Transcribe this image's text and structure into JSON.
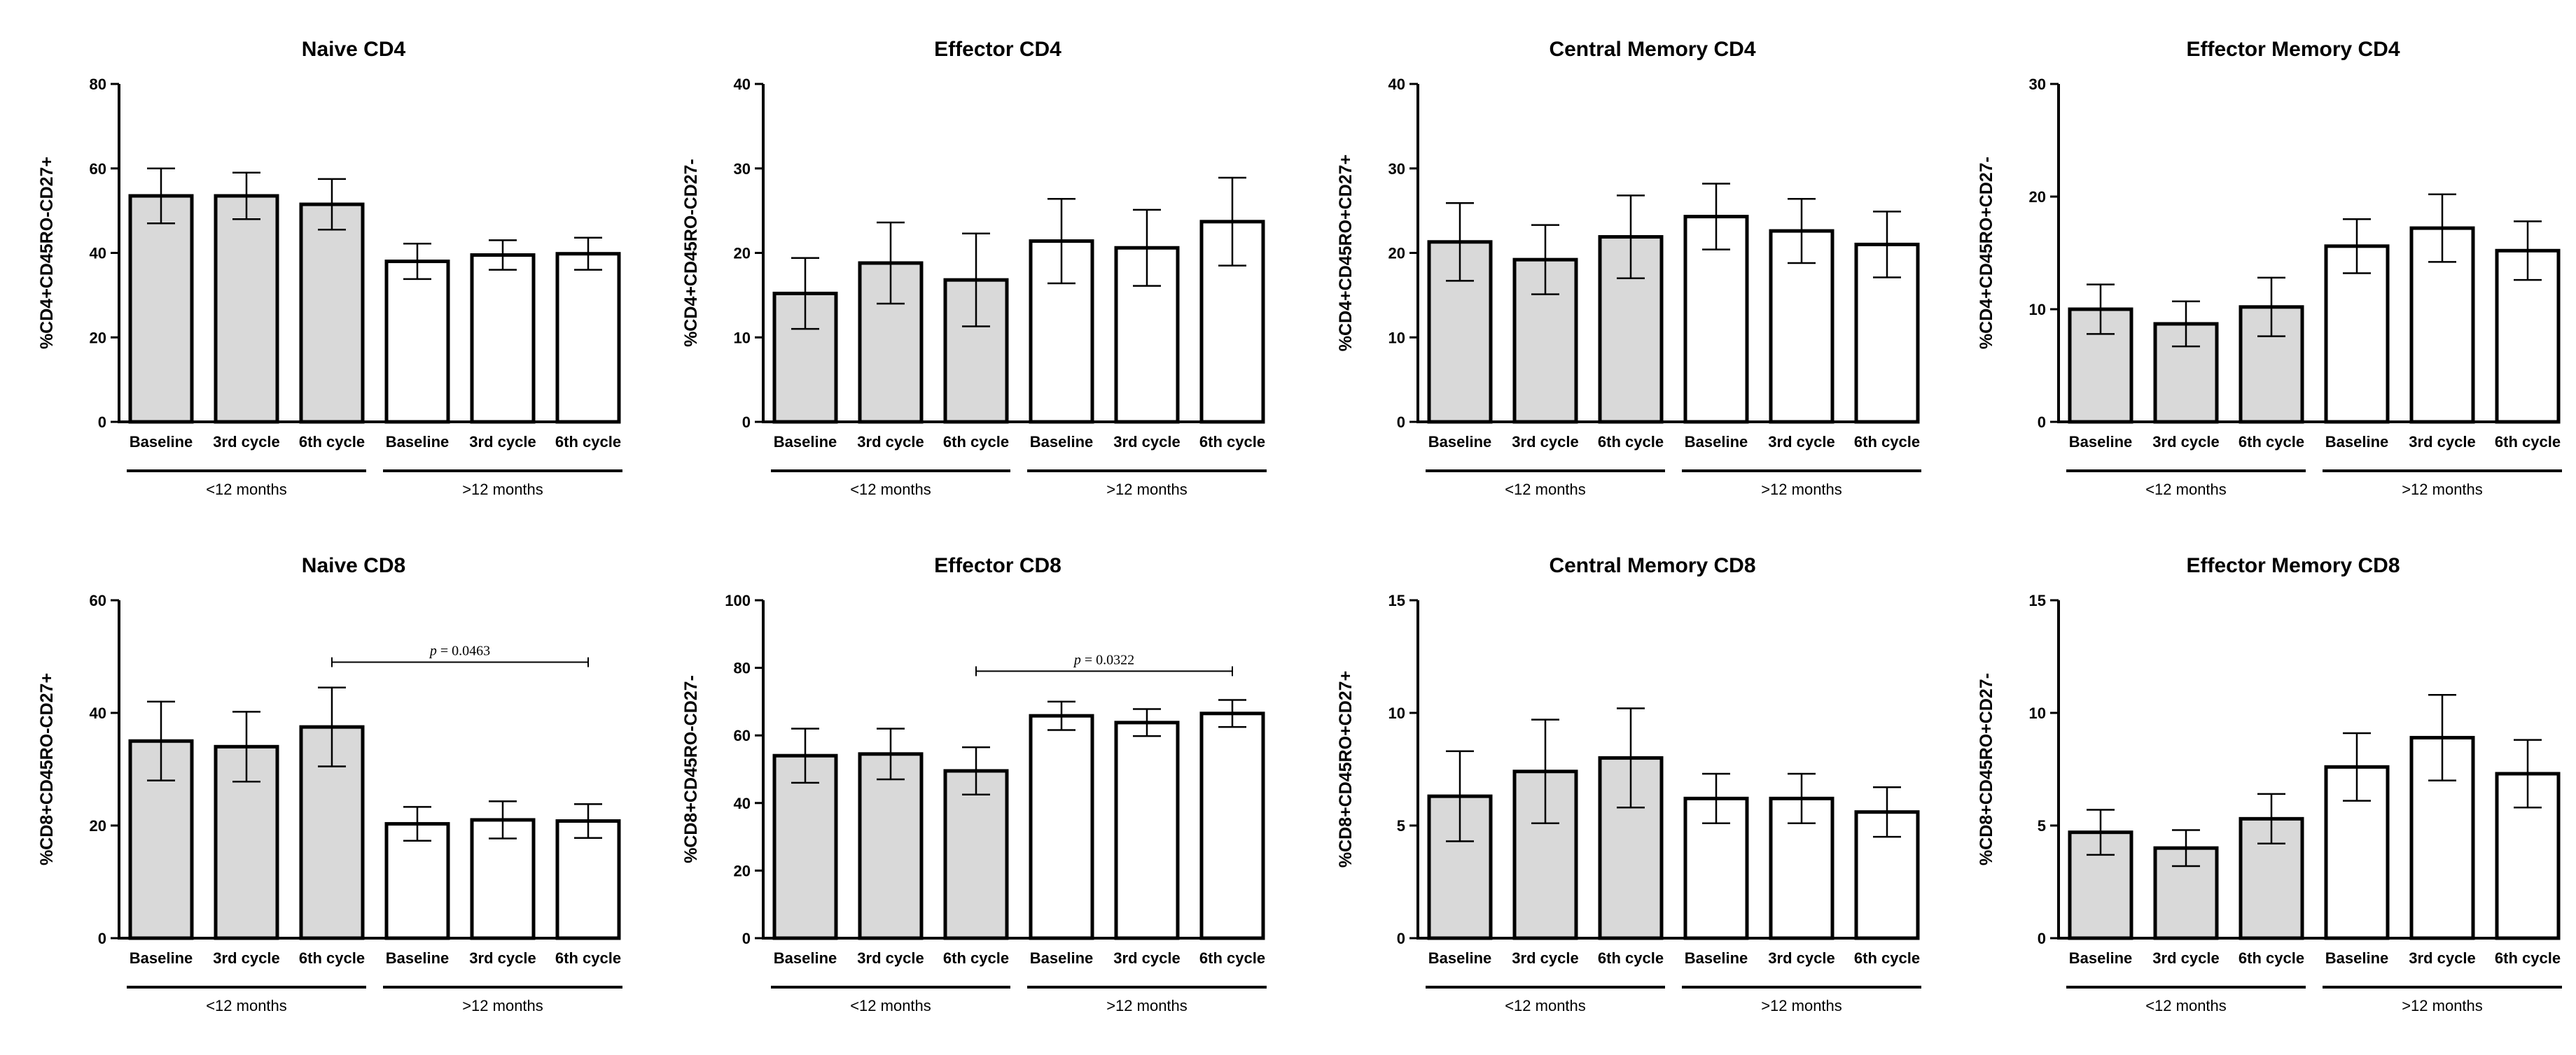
{
  "colors": {
    "shortFill": "#d9d9d9",
    "longFill": "#ffffff",
    "stroke": "#000000"
  },
  "chart_data": [
    {
      "type": "bar",
      "title": "Naive CD4",
      "ylabel": "%CD4+CD45RO-CD27+",
      "ylim": [
        0,
        80
      ],
      "yticks": [
        0,
        20,
        40,
        60,
        80
      ],
      "categories": [
        "Baseline",
        "3rd cycle",
        "6th cycle",
        "Baseline",
        "3rd cycle",
        "6th cycle"
      ],
      "groups": [
        "<12 months",
        ">12 months"
      ],
      "values": [
        53.5,
        53.5,
        51.5,
        38.0,
        39.5,
        39.8
      ],
      "errors": [
        6.5,
        5.5,
        6.0,
        4.2,
        3.5,
        3.8
      ]
    },
    {
      "type": "bar",
      "title": "Effector CD4",
      "ylabel": "%CD4+CD45RO-CD27-",
      "ylim": [
        0,
        40
      ],
      "yticks": [
        0,
        10,
        20,
        30,
        40
      ],
      "categories": [
        "Baseline",
        "3rd cycle",
        "6th cycle",
        "Baseline",
        "3rd cycle",
        "6th cycle"
      ],
      "groups": [
        "<12 months",
        ">12 months"
      ],
      "values": [
        15.2,
        18.8,
        16.8,
        21.4,
        20.6,
        23.7
      ],
      "errors": [
        4.2,
        4.8,
        5.5,
        5.0,
        4.5,
        5.2
      ]
    },
    {
      "type": "bar",
      "title": "Central Memory CD4",
      "ylabel": "%CD4+CD45RO+CD27+",
      "ylim": [
        0,
        40
      ],
      "yticks": [
        0,
        10,
        20,
        30,
        40
      ],
      "categories": [
        "Baseline",
        "3rd cycle",
        "6th cycle",
        "Baseline",
        "3rd cycle",
        "6th cycle"
      ],
      "groups": [
        "<12 months",
        ">12 months"
      ],
      "values": [
        21.3,
        19.2,
        21.9,
        24.3,
        22.6,
        21.0
      ],
      "errors": [
        4.6,
        4.1,
        4.9,
        3.9,
        3.8,
        3.9
      ]
    },
    {
      "type": "bar",
      "title": "Effector Memory CD4",
      "ylabel": "%CD4+CD45RO+CD27-",
      "ylim": [
        0,
        30
      ],
      "yticks": [
        0,
        10,
        20,
        30
      ],
      "categories": [
        "Baseline",
        "3rd cycle",
        "6th cycle",
        "Baseline",
        "3rd cycle",
        "6th cycle"
      ],
      "groups": [
        "<12 months",
        ">12 months"
      ],
      "values": [
        10.0,
        8.7,
        10.2,
        15.6,
        17.2,
        15.2
      ],
      "errors": [
        2.2,
        2.0,
        2.6,
        2.4,
        3.0,
        2.6
      ]
    },
    {
      "type": "bar",
      "title": "Naive CD8",
      "ylabel": "%CD8+CD45RO-CD27+",
      "ylim": [
        0,
        60
      ],
      "yticks": [
        0,
        20,
        40,
        60
      ],
      "categories": [
        "Baseline",
        "3rd cycle",
        "6th cycle",
        "Baseline",
        "3rd cycle",
        "6th cycle"
      ],
      "groups": [
        "<12 months",
        ">12 months"
      ],
      "values": [
        35.0,
        34.0,
        37.5,
        20.3,
        21.0,
        20.8
      ],
      "errors": [
        7.0,
        6.2,
        7.0,
        3.0,
        3.3,
        3.0
      ],
      "annotation": {
        "label": "p",
        "text": " = 0.0463",
        "from": 2,
        "to": 5,
        "y": 49
      }
    },
    {
      "type": "bar",
      "title": "Effector CD8",
      "ylabel": "%CD8+CD45RO-CD27-",
      "ylim": [
        0,
        100
      ],
      "yticks": [
        0,
        20,
        40,
        60,
        80,
        100
      ],
      "categories": [
        "Baseline",
        "3rd cycle",
        "6th cycle",
        "Baseline",
        "3rd cycle",
        "6th cycle"
      ],
      "groups": [
        "<12 months",
        ">12 months"
      ],
      "values": [
        54.0,
        54.5,
        49.5,
        65.8,
        63.8,
        66.5
      ],
      "errors": [
        8.0,
        7.5,
        7.0,
        4.2,
        4.0,
        4.0
      ],
      "annotation": {
        "label": "p",
        "text": " = 0.0322",
        "from": 2,
        "to": 5,
        "y": 79
      }
    },
    {
      "type": "bar",
      "title": "Central Memory CD8",
      "ylabel": "%CD8+CD45RO+CD27+",
      "ylim": [
        0,
        15
      ],
      "yticks": [
        0,
        5,
        10,
        15
      ],
      "categories": [
        "Baseline",
        "3rd cycle",
        "6th cycle",
        "Baseline",
        "3rd cycle",
        "6th cycle"
      ],
      "groups": [
        "<12 months",
        ">12 months"
      ],
      "values": [
        6.3,
        7.4,
        8.0,
        6.2,
        6.2,
        5.6
      ],
      "errors": [
        2.0,
        2.3,
        2.2,
        1.1,
        1.1,
        1.1
      ]
    },
    {
      "type": "bar",
      "title": "Effector Memory CD8",
      "ylabel": "%CD8+CD45RO+CD27-",
      "ylim": [
        0,
        15
      ],
      "yticks": [
        0,
        5,
        10,
        15
      ],
      "categories": [
        "Baseline",
        "3rd cycle",
        "6th cycle",
        "Baseline",
        "3rd cycle",
        "6th cycle"
      ],
      "groups": [
        "<12 months",
        ">12 months"
      ],
      "values": [
        4.7,
        4.0,
        5.3,
        7.6,
        8.9,
        7.3
      ],
      "errors": [
        1.0,
        0.8,
        1.1,
        1.5,
        1.9,
        1.5
      ]
    }
  ]
}
